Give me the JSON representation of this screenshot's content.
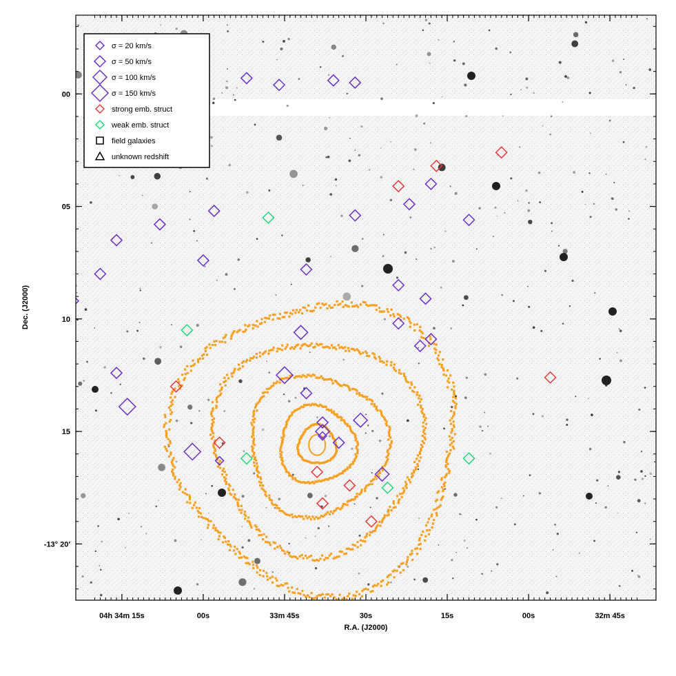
{
  "chart_data": {
    "type": "scatter",
    "title": "",
    "xlabel": "R.A. (J2000)",
    "ylabel": "Dec. (J2000)",
    "x_tick_labels": [
      {
        "h": "04",
        "m": "34",
        "s": "15",
        "ra_sec_offset": 0
      },
      {
        "s": "00",
        "ra_sec_offset": -15
      },
      {
        "m": "33",
        "s": "45",
        "ra_sec_offset": -30
      },
      {
        "s": "30",
        "ra_sec_offset": -45
      },
      {
        "s": "15",
        "ra_sec_offset": -60
      },
      {
        "s": "00",
        "ra_sec_offset": -75
      },
      {
        "m": "32",
        "s": "45",
        "ra_sec_offset": -90
      }
    ],
    "y_tick_labels": [
      {
        "text": "00",
        "dec_arcmin": 0
      },
      {
        "text": "05",
        "dec_arcmin": 5
      },
      {
        "text": "10",
        "dec_arcmin": 10
      },
      {
        "text": "15",
        "dec_arcmin": 15
      },
      {
        "text": "-13° 20'",
        "dec_arcmin": 20
      }
    ],
    "x_range_ra_sec": [
      8.5,
      -98.5
    ],
    "y_range_dec_arcmin": [
      -3.5,
      22.5
    ],
    "legend_position": "top-left",
    "legend": [
      {
        "label": "σ = 20 km/s",
        "marker": "diamond",
        "size": "small",
        "color": "#6a2fc9"
      },
      {
        "label": "σ = 50 km/s",
        "marker": "diamond",
        "size": "medium",
        "color": "#6a2fc9"
      },
      {
        "label": "σ = 100 km/s",
        "marker": "diamond",
        "size": "large",
        "color": "#6a2fc9"
      },
      {
        "label": "σ = 150 km/s",
        "marker": "diamond",
        "size": "xlarge",
        "color": "#6a2fc9"
      },
      {
        "label": "strong emb. struct",
        "marker": "diamond",
        "size": "small",
        "color": "#e53935"
      },
      {
        "label": "weak emb. struct",
        "marker": "diamond",
        "size": "small",
        "color": "#20d67a"
      },
      {
        "label": "field galaxies",
        "marker": "square",
        "color": "#000000"
      },
      {
        "label": "unknown redshift",
        "marker": "triangle",
        "color": "#000000"
      }
    ],
    "contour_color": "#f5a020",
    "contour_center": {
      "ra_sec_offset": -36,
      "dec_arcmin": 15.6
    },
    "contour_radii_arcmin": [
      0.8,
      1.6,
      2.9,
      4.4,
      6.0
    ],
    "series": [
      {
        "name": "σ = 150 km/s",
        "marker": "diamond",
        "color": "#6a2fc9",
        "size": "xlarge",
        "x": [
          -1,
          -30,
          -13
        ],
        "y": [
          13.9,
          12.5,
          15.9
        ]
      },
      {
        "name": "σ = 100 km/s",
        "marker": "diamond",
        "color": "#6a2fc9",
        "size": "large",
        "x": [
          -37,
          -33,
          -48,
          -44
        ],
        "y": [
          15.0,
          10.6,
          16.9,
          14.5
        ]
      },
      {
        "name": "σ = 50 km/s",
        "marker": "diamond",
        "color": "#6a2fc9",
        "size": "medium",
        "x": [
          -23,
          -29,
          -39,
          -43,
          -57,
          -53,
          -64,
          -43,
          -51,
          -56,
          -34,
          4,
          -15,
          -17,
          -7,
          1,
          -40,
          -37,
          -55,
          -51,
          -57,
          -34,
          1,
          9
        ],
        "y": [
          -0.7,
          -0.4,
          -0.6,
          -0.5,
          4.0,
          4.9,
          5.6,
          5.4,
          8.5,
          9.1,
          7.8,
          8.0,
          7.4,
          5.2,
          5.8,
          6.5,
          15.5,
          14.6,
          11.2,
          10.2,
          10.9,
          13.3,
          12.4,
          9.2
        ],
        "show_subset": true
      },
      {
        "name": "σ = 20 km/s",
        "marker": "diamond",
        "color": "#6a2fc9",
        "size": "small",
        "x": [
          -18,
          -37
        ],
        "y": [
          16.3,
          15.2
        ]
      },
      {
        "name": "strong emb. struct",
        "marker": "diamond",
        "color": "#e53935",
        "size": "medium",
        "x": [
          -58,
          -51,
          -70,
          -79,
          -18,
          -36,
          -42,
          -37,
          -46,
          -10
        ],
        "y": [
          3.2,
          4.1,
          2.6,
          12.6,
          15.5,
          16.8,
          17.4,
          18.2,
          19.0,
          13.0
        ],
        "show_subset": true
      },
      {
        "name": "weak emb. struct",
        "marker": "diamond",
        "color": "#20d67a",
        "size": "medium",
        "x": [
          -27,
          -12,
          -23,
          -49,
          -64
        ],
        "y": [
          5.5,
          10.5,
          16.2,
          17.5,
          16.2
        ],
        "show_subset": true
      },
      {
        "name": "field galaxies",
        "marker": "square",
        "color": "#000000",
        "size": "medium",
        "x": [],
        "y": [],
        "placeholder_note": ""
      },
      {
        "name": "unknown redshift",
        "marker": "triangle",
        "color": "#000000",
        "size": "medium",
        "x": [],
        "y": []
      }
    ],
    "grid": false
  }
}
